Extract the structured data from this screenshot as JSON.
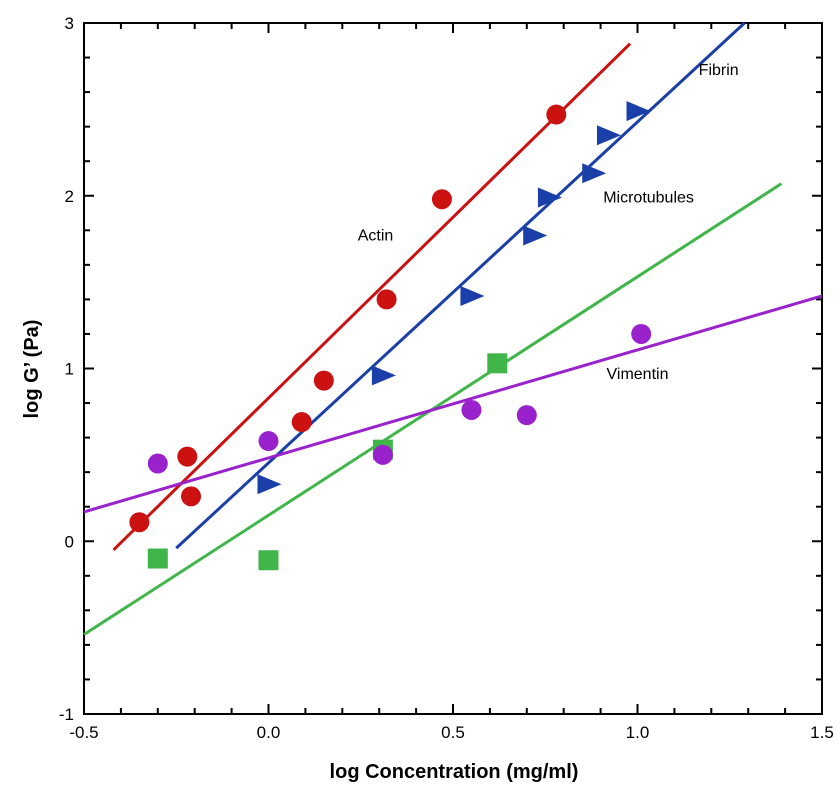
{
  "chart_data": {
    "type": "scatter",
    "title": "",
    "xlabel": "log Concentration (mg/ml)",
    "ylabel": "log G’ (Pa)",
    "xlim": [
      -0.5,
      1.5
    ],
    "ylim": [
      -1,
      3
    ],
    "xticks": [
      -0.5,
      0.0,
      0.5,
      1.0,
      1.5
    ],
    "xtick_labels": [
      "-0.5",
      "0.0",
      "0.5",
      "1.0",
      "1.5"
    ],
    "yticks": [
      -1,
      0,
      1,
      2,
      3
    ],
    "ytick_labels": [
      "-1",
      "0",
      "1",
      "2",
      "3"
    ],
    "grid": false,
    "legend": "none (series labeled inline)",
    "series": [
      {
        "name": "Actin",
        "marker": "circle",
        "color": "#cc1111",
        "points": [
          [
            -0.35,
            0.11
          ],
          [
            -0.22,
            0.49
          ],
          [
            -0.21,
            0.26
          ],
          [
            0.09,
            0.69
          ],
          [
            0.15,
            0.93
          ],
          [
            0.32,
            1.4
          ],
          [
            0.47,
            1.98
          ],
          [
            0.78,
            2.47
          ]
        ],
        "fit_line": [
          [
            -0.42,
            -0.05
          ],
          [
            0.98,
            2.88
          ]
        ],
        "label_pos": [
          0.29,
          1.74
        ]
      },
      {
        "name": "Fibrin",
        "marker": "triangle-right",
        "color": "#1a3fa8",
        "points": [
          [
            0.0,
            0.33
          ],
          [
            0.31,
            0.96
          ],
          [
            0.55,
            1.42
          ],
          [
            0.72,
            1.77
          ],
          [
            0.76,
            1.99
          ],
          [
            0.88,
            2.13
          ],
          [
            0.92,
            2.35
          ],
          [
            1.0,
            2.49
          ]
        ],
        "fit_line": [
          [
            -0.25,
            -0.04
          ],
          [
            1.29,
            3.0
          ]
        ],
        "label_pos": [
          1.22,
          2.7
        ]
      },
      {
        "name": "Microtubules",
        "marker": "square",
        "color": "#3fb54a",
        "points": [
          [
            -0.3,
            -0.1
          ],
          [
            0.0,
            -0.11
          ],
          [
            0.31,
            0.53
          ],
          [
            0.62,
            1.03
          ]
        ],
        "fit_line": [
          [
            -0.5,
            -0.54
          ],
          [
            1.39,
            2.07
          ]
        ],
        "label_pos": [
          1.03,
          1.96
        ]
      },
      {
        "name": "Vimentin",
        "marker": "circle",
        "color": "#9922cc",
        "points": [
          [
            -0.3,
            0.45
          ],
          [
            0.0,
            0.58
          ],
          [
            0.31,
            0.5
          ],
          [
            0.55,
            0.76
          ],
          [
            0.7,
            0.73
          ],
          [
            1.01,
            1.2
          ]
        ],
        "fit_line": [
          [
            -0.5,
            0.17
          ],
          [
            1.5,
            1.42
          ]
        ],
        "label_pos": [
          1.0,
          0.94
        ]
      }
    ]
  }
}
